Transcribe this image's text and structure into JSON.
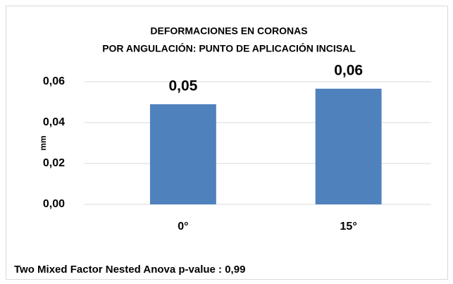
{
  "chart_data": {
    "type": "bar",
    "title": [
      "DEFORMACIONES EN CORONAS",
      "POR ANGULACIÓN: PUNTO DE APLICACIÓN INCISAL"
    ],
    "y_label": "mm",
    "categories": [
      "0°",
      "15°"
    ],
    "values": [
      0.049,
      0.0566
    ],
    "value_labels": [
      "0,05",
      "0,06"
    ],
    "color": "#4f81bd",
    "ylim": [
      0,
      0.06
    ],
    "yticks": [
      {
        "value": 0,
        "label": "0,00"
      },
      {
        "value": 0.02,
        "label": "0,02"
      },
      {
        "value": 0.04,
        "label": "0,04"
      },
      {
        "value": 0.06,
        "label": "0,06"
      }
    ],
    "grid": true,
    "annotation": "Two Mixed Factor Nested Anova p-value : 0,99"
  }
}
